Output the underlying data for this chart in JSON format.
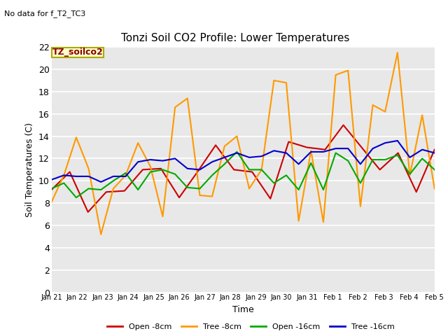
{
  "title": "Tonzi Soil CO2 Profile: Lower Temperatures",
  "subtitle": "No data for f_T2_TC3",
  "xlabel": "Time",
  "ylabel": "Soil Temperatures (C)",
  "legend_label": "TZ_soilco2",
  "ylim": [
    0,
    22
  ],
  "yticks": [
    0,
    2,
    4,
    6,
    8,
    10,
    12,
    14,
    16,
    18,
    20,
    22
  ],
  "fig_bg_color": "#ffffff",
  "plot_bg_color": "#e8e8e8",
  "x_labels": [
    "Jan 21",
    "Jan 22",
    "Jan 23",
    "Jan 24",
    "Jan 25",
    "Jan 26",
    "Jan 27",
    "Jan 28",
    "Jan 29",
    "Jan 30",
    "Jan 31",
    "Feb 1",
    "Feb 2",
    "Feb 3",
    "Feb 4",
    "Feb 5"
  ],
  "series": {
    "open_8cm": {
      "label": "Open -8cm",
      "color": "#cc0000",
      "linewidth": 1.5,
      "values": [
        9.2,
        10.8,
        7.2,
        9.0,
        9.1,
        11.0,
        11.1,
        8.5,
        10.8,
        13.2,
        11.0,
        10.8,
        8.4,
        13.5,
        13.0,
        12.8,
        15.0,
        13.0,
        11.0,
        12.5,
        9.0,
        12.8
      ]
    },
    "tree_8cm": {
      "label": "Tree -8cm",
      "color": "#ff9900",
      "linewidth": 1.5,
      "values": [
        8.1,
        10.5,
        13.9,
        11.1,
        5.2,
        9.3,
        10.5,
        13.4,
        11.3,
        6.8,
        16.6,
        17.4,
        8.7,
        8.6,
        13.1,
        14.0,
        9.3,
        11.0,
        19.0,
        18.8,
        6.4,
        12.7,
        6.3,
        19.5,
        19.9,
        7.7,
        16.8,
        16.2,
        21.5,
        10.5,
        15.9,
        9.3
      ]
    },
    "open_16cm": {
      "label": "Open -16cm",
      "color": "#00aa00",
      "linewidth": 1.5,
      "values": [
        9.3,
        9.8,
        8.5,
        9.3,
        9.2,
        10.0,
        10.7,
        9.2,
        10.8,
        11.0,
        10.6,
        9.4,
        9.3,
        10.5,
        11.5,
        12.6,
        11.0,
        11.0,
        9.8,
        10.5,
        9.2,
        11.6,
        9.2,
        12.5,
        11.8,
        9.8,
        11.9,
        11.9,
        12.3,
        10.6,
        12.0,
        11.0
      ]
    },
    "tree_16cm": {
      "label": "Tree -16cm",
      "color": "#0000cc",
      "linewidth": 1.5,
      "values": [
        10.1,
        10.5,
        10.4,
        10.4,
        9.9,
        10.4,
        10.4,
        11.7,
        11.9,
        11.8,
        12.0,
        11.1,
        11.0,
        11.7,
        12.1,
        12.5,
        12.1,
        12.2,
        12.7,
        12.5,
        11.5,
        12.6,
        12.6,
        12.9,
        12.9,
        11.5,
        12.9,
        13.4,
        13.6,
        12.1,
        12.8,
        12.5
      ]
    }
  }
}
